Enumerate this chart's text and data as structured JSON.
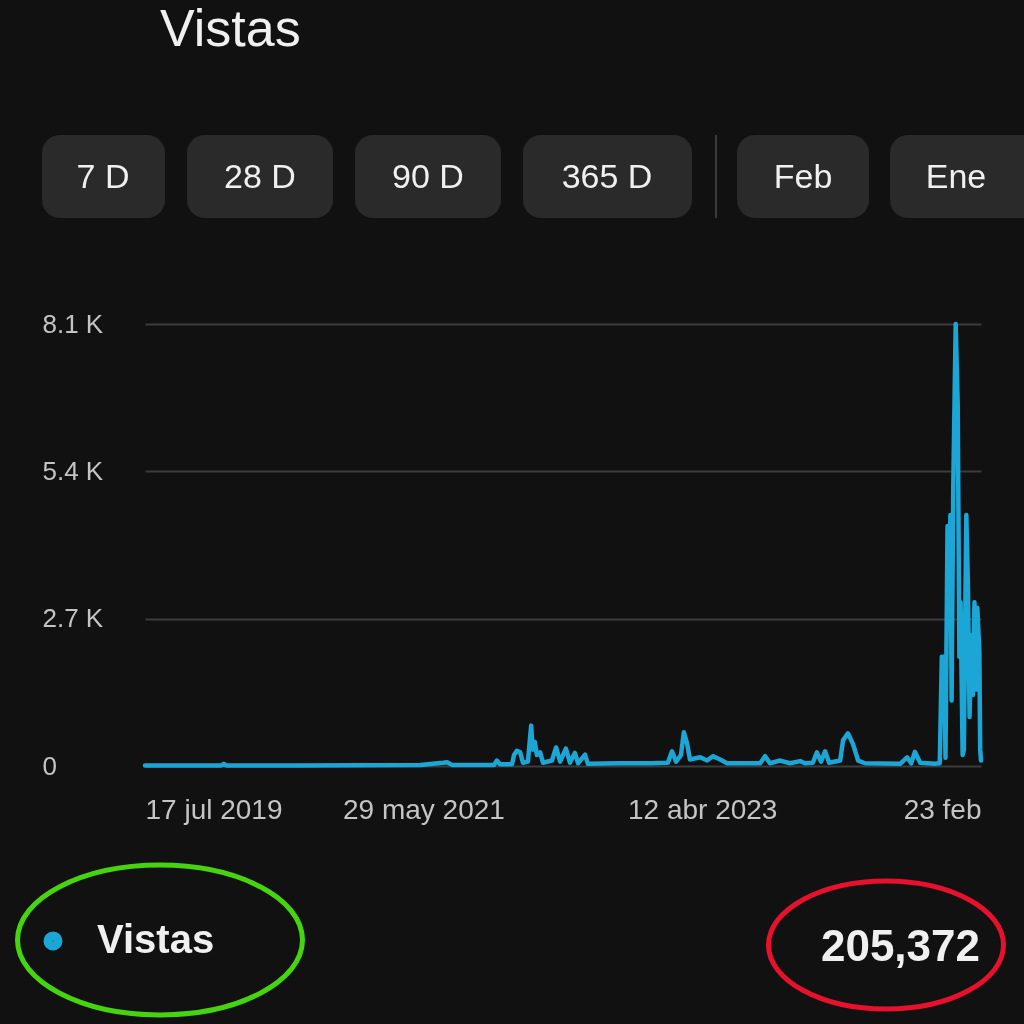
{
  "chart_data": {
    "type": "line",
    "title": "Vistas",
    "x": [
      "2019-07-17",
      "2019-10-11",
      "2020-01-20",
      "2020-01-26",
      "2020-02-01",
      "2020-07-31",
      "2021-05-21",
      "2021-07-16",
      "2021-07-26",
      "2021-08-07",
      "2021-11-08",
      "2021-11-18",
      "2021-11-25",
      "2021-12-03",
      "2022-01-01",
      "2022-01-06",
      "2022-01-13",
      "2022-01-21",
      "2022-01-28",
      "2022-02-09",
      "2022-02-17",
      "2022-02-21",
      "2022-02-26",
      "2022-03-03",
      "2022-03-11",
      "2022-03-18",
      "2022-04-09",
      "2022-04-19",
      "2022-04-29",
      "2022-05-13",
      "2022-05-23",
      "2022-06-04",
      "2022-06-12",
      "2022-06-29",
      "2022-07-06",
      "2022-09-23",
      "2022-12-05",
      "2023-01-18",
      "2023-01-28",
      "2023-02-07",
      "2023-02-19",
      "2023-02-26",
      "2023-03-06",
      "2023-03-13",
      "2023-04-07",
      "2023-04-24",
      "2023-05-08",
      "2023-05-26",
      "2023-06-12",
      "2023-09-01",
      "2023-09-13",
      "2023-09-25",
      "2023-10-20",
      "2023-11-13",
      "2023-12-08",
      "2023-12-20",
      "2024-01-08",
      "2024-01-18",
      "2024-01-28",
      "2024-02-07",
      "2024-02-17",
      "2024-03-15",
      "2024-03-22",
      "2024-04-03",
      "2024-04-15",
      "2024-04-28",
      "2024-05-15",
      "2024-08-09",
      "2024-08-26",
      "2024-09-05",
      "2024-09-14",
      "2024-09-27",
      "2024-11-02",
      "2024-11-14",
      "2024-11-19",
      "2024-11-25",
      "2024-11-28",
      "2024-12-03",
      "2024-12-06",
      "2024-12-10",
      "2024-12-13",
      "2024-12-17",
      "2024-12-23",
      "2024-12-28",
      "2025-01-01",
      "2025-01-04",
      "2025-01-09",
      "2025-01-12",
      "2025-01-18",
      "2025-01-22",
      "2025-01-26",
      "2025-01-30",
      "2025-02-03",
      "2025-02-07",
      "2025-02-11",
      "2025-02-14",
      "2025-02-19",
      "2025-02-21",
      "2025-02-23"
    ],
    "series": [
      {
        "name": "Vistas",
        "color": "#1ba6d6",
        "values": [
          10,
          10,
          10,
          40,
          10,
          10,
          20,
          60,
          70,
          20,
          20,
          20,
          100,
          30,
          30,
          200,
          280,
          250,
          60,
          80,
          740,
          300,
          440,
          200,
          250,
          60,
          100,
          340,
          80,
          320,
          60,
          240,
          50,
          210,
          40,
          50,
          50,
          60,
          270,
          80,
          200,
          620,
          410,
          120,
          160,
          100,
          180,
          120,
          50,
          50,
          180,
          50,
          100,
          50,
          90,
          50,
          60,
          250,
          80,
          270,
          60,
          100,
          470,
          600,
          410,
          100,
          50,
          40,
          160,
          50,
          260,
          60,
          40,
          50,
          2000,
          2000,
          150,
          4400,
          2500,
          4600,
          1200,
          5100,
          8100,
          6600,
          2000,
          3000,
          200,
          300,
          4600,
          3300,
          900,
          2400,
          1300,
          3000,
          1400,
          2900,
          2100,
          300,
          100
        ]
      }
    ],
    "xlim": [
      "2019-07-17",
      "2025-02-23"
    ],
    "xticks": [
      {
        "value": "2019-07-17",
        "label": "17 jul 2019"
      },
      {
        "value": "2021-05-29",
        "label": "29 may 2021"
      },
      {
        "value": "2023-04-12",
        "label": "12 abr 2023"
      },
      {
        "value": "2025-02-23",
        "label": "23 feb"
      }
    ],
    "ylim": [
      0,
      8100
    ],
    "yticks": [
      0,
      {
        "value": 2700,
        "label": "2.7 K"
      },
      {
        "value": 5400,
        "label": "5.4 K"
      },
      {
        "value": 8100,
        "label": "8.1 K"
      }
    ],
    "grid": "y",
    "legend": "bottom left",
    "annotations": [
      "7 D",
      "28 D",
      "90 D",
      "365 D",
      "Feb",
      "Ene",
      "205,372"
    ]
  }
}
